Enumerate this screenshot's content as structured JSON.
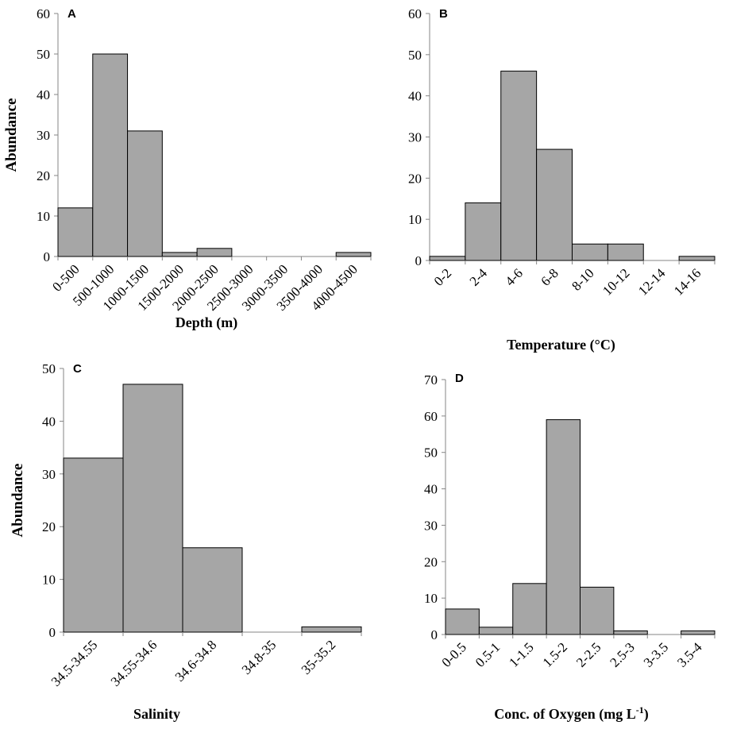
{
  "chart_data": [
    {
      "id": "A",
      "panel_label": "A",
      "type": "bar",
      "title": "",
      "categories": [
        "0-500",
        "500-1000",
        "1000-1500",
        "1500-2000",
        "2000-2500",
        "2500-3000",
        "3000-3500",
        "3500-4000",
        "4000-4500"
      ],
      "values": [
        12,
        50,
        31,
        1,
        2,
        0,
        0,
        0,
        1
      ],
      "xlabel": "Depth (m)",
      "ylabel": "Abundance",
      "ylim": [
        0,
        60
      ],
      "yticks": [
        "0",
        "10",
        "20",
        "30",
        "40",
        "50",
        "60"
      ],
      "grid": false
    },
    {
      "id": "B",
      "panel_label": "B",
      "type": "bar",
      "title": "",
      "categories": [
        "0-2",
        "2-4",
        "4-6",
        "6-8",
        "8-10",
        "10-12",
        "12-14",
        "14-16"
      ],
      "values": [
        1,
        14,
        46,
        27,
        4,
        4,
        0,
        1
      ],
      "xlabel": "Temperature (°C)",
      "ylabel": "",
      "ylim": [
        0,
        60
      ],
      "yticks": [
        "0",
        "10",
        "20",
        "30",
        "40",
        "50",
        "60"
      ],
      "grid": false
    },
    {
      "id": "C",
      "panel_label": "C",
      "type": "bar",
      "title": "",
      "categories": [
        "34.5-34.55",
        "34.55-34.6",
        "34.6-34.8",
        "34.8-35",
        "35-35.2"
      ],
      "values": [
        33,
        47,
        16,
        0,
        1
      ],
      "xlabel": "Salinity",
      "ylabel": "Abundance",
      "ylim": [
        0,
        50
      ],
      "yticks": [
        "0",
        "10",
        "20",
        "30",
        "40",
        "50"
      ],
      "grid": false
    },
    {
      "id": "D",
      "panel_label": "D",
      "type": "bar",
      "title": "",
      "categories": [
        "0-0.5",
        "0.5-1",
        "1-1.5",
        "1.5-2",
        "2-2.5",
        "2.5-3",
        "3-3.5",
        "3.5-4"
      ],
      "values": [
        7,
        2,
        14,
        59,
        13,
        1,
        0,
        1
      ],
      "xlabel": "Conc. of Oxygen (mg L",
      "xlabel_sup": "-1",
      "xlabel_end": ")",
      "ylabel": "",
      "ylim": [
        0,
        70
      ],
      "yticks": [
        "0",
        "10",
        "20",
        "30",
        "40",
        "50",
        "60",
        "70"
      ],
      "grid": false
    }
  ]
}
